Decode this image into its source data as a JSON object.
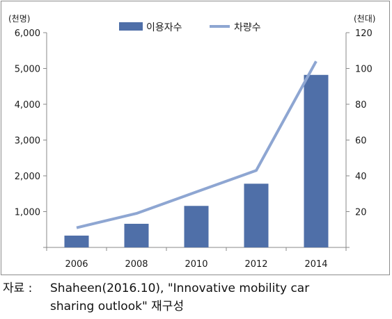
{
  "chart_data": {
    "type": "bar",
    "categories": [
      "2006",
      "2008",
      "2010",
      "2012",
      "2014"
    ],
    "series": [
      {
        "name": "이용자수",
        "type": "bar",
        "axis": "left",
        "color": "#4f6fa8",
        "values": [
          330,
          660,
          1160,
          1780,
          4820
        ]
      },
      {
        "name": "차량수",
        "type": "line",
        "axis": "right",
        "color": "#8ea6d2",
        "values": [
          11,
          19,
          31,
          43,
          104
        ]
      }
    ],
    "y_left": {
      "unit": "(천명)",
      "ylim": [
        0,
        6000
      ],
      "ticks": [
        "1,000",
        "2,000",
        "3,000",
        "4,000",
        "5,000",
        "6,000"
      ],
      "tick_values": [
        1000,
        2000,
        3000,
        4000,
        5000,
        6000
      ]
    },
    "y_right": {
      "unit": "(천대)",
      "ylim": [
        0,
        120
      ],
      "ticks": [
        "20",
        "40",
        "60",
        "80",
        "100",
        "120"
      ],
      "tick_values": [
        20,
        40,
        60,
        80,
        100,
        120
      ]
    },
    "legend": {
      "placement": "top-center"
    },
    "grid": false
  },
  "source": {
    "label": "자료 :",
    "line1": "Shaheen(2016.10), \"Innovative mobility car",
    "line2": "sharing outlook\" 재구성"
  }
}
